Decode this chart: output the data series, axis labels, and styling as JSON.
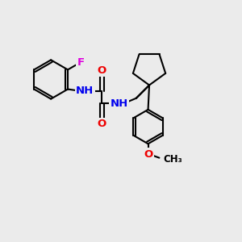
{
  "bg_color": "#ebebeb",
  "bond_color": "#000000",
  "bond_width": 1.5,
  "atom_colors": {
    "N": "#0000ee",
    "O": "#ee0000",
    "F": "#dd00dd",
    "C": "#000000"
  },
  "font_size_atoms": 9.5,
  "font_size_label": 8.5,
  "xlim": [
    0,
    10
  ],
  "ylim": [
    0,
    10
  ]
}
